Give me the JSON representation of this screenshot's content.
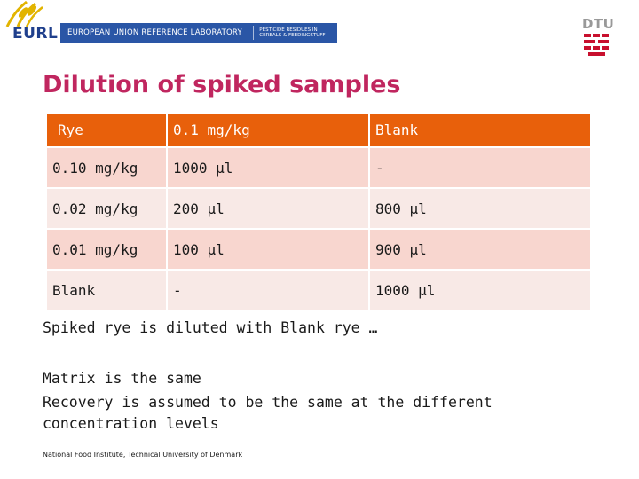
{
  "header": {
    "logo_text": "EURL",
    "banner_left": "EUROPEAN UNION REFERENCE LABORATORY",
    "banner_right_line1": "PESTICIDE RESIDUES IN",
    "banner_right_line2": "CEREALS & FEEDINGSTUFF",
    "dtu_text": "DTU"
  },
  "slide": {
    "title": "Dilution of spiked samples"
  },
  "table": {
    "headers": [
      "Rye",
      "0.1 mg/kg",
      "Blank"
    ],
    "rows": [
      [
        "0.10 mg/kg",
        "1000 µl",
        "-"
      ],
      [
        "0.02 mg/kg",
        "200 µl",
        "800 µl"
      ],
      [
        "0.01 mg/kg",
        "100 µl",
        "900 µl"
      ],
      [
        "Blank",
        "-",
        "1000 µl"
      ]
    ]
  },
  "body": {
    "line1": "Spiked rye is diluted with Blank rye …",
    "line2": "Matrix is the same",
    "line3": "Recovery is assumed to be the same at the different concentration levels"
  },
  "footer": {
    "text": "National Food Institute, Technical University of Denmark"
  },
  "colors": {
    "title": "#c0265f",
    "header_row": "#e8600b",
    "row_dark": "#f8d6cf",
    "row_light": "#f8e9e6",
    "banner": "#2a56a6",
    "dtu_red": "#c8102e"
  }
}
